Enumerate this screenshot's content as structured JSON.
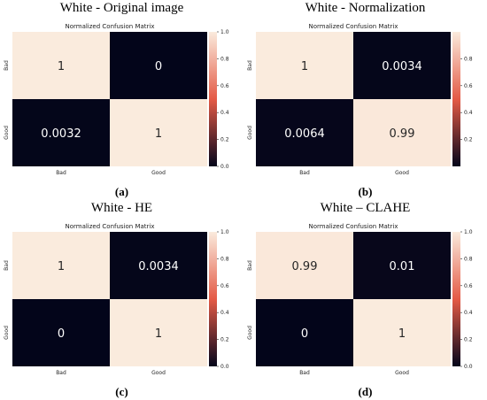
{
  "panels": [
    {
      "title": "White - Original image",
      "caption": "(a)"
    },
    {
      "title": "White - Normalization",
      "caption": "(b)"
    },
    {
      "title": "White - HE",
      "caption": "(c)"
    },
    {
      "title": "White – CLAHE",
      "caption": "(d)"
    }
  ],
  "colors": {
    "high": "#faebdd",
    "low": "#03051a"
  },
  "chart_data": [
    {
      "type": "heatmap",
      "title": "Normalized Confusion Matrix",
      "x_categories": [
        "Bad",
        "Good"
      ],
      "y_categories": [
        "Bad",
        "Good"
      ],
      "values": [
        [
          1,
          0
        ],
        [
          0.0032,
          1
        ]
      ],
      "labels": [
        [
          "1",
          "0"
        ],
        [
          "0.0032",
          "1"
        ]
      ],
      "colorbar": {
        "min": 0.0,
        "max": 1.0,
        "ticks": [
          "0.0",
          "0.2",
          "0.4",
          "0.6",
          "0.8",
          "1.0"
        ]
      }
    },
    {
      "type": "heatmap",
      "title": "Normalized Confusion Matrix",
      "x_categories": [
        "Bad",
        "Good"
      ],
      "y_categories": [
        "Bad",
        "Good"
      ],
      "values": [
        [
          1,
          0.0034
        ],
        [
          0.0064,
          0.99
        ]
      ],
      "labels": [
        [
          "1",
          "0.0034"
        ],
        [
          "0.0064",
          "0.99"
        ]
      ],
      "colorbar": {
        "min": 0.0,
        "max": 1.0,
        "ticks": [
          "0.2",
          "0.4",
          "0.6",
          "0.8"
        ]
      }
    },
    {
      "type": "heatmap",
      "title": "Normalized Confusion Matrix",
      "x_categories": [
        "Bad",
        "Good"
      ],
      "y_categories": [
        "Bad",
        "Good"
      ],
      "values": [
        [
          1,
          0.0034
        ],
        [
          0,
          1
        ]
      ],
      "labels": [
        [
          "1",
          "0.0034"
        ],
        [
          "0",
          "1"
        ]
      ],
      "colorbar": {
        "min": 0.0,
        "max": 1.0,
        "ticks": [
          "0.0",
          "0.2",
          "0.4",
          "0.6",
          "0.8",
          "1.0"
        ]
      }
    },
    {
      "type": "heatmap",
      "title": "Normalized Confusion Matrix",
      "x_categories": [
        "Bad",
        "Good"
      ],
      "y_categories": [
        "Bad",
        "Good"
      ],
      "values": [
        [
          0.99,
          0.01
        ],
        [
          0,
          1
        ]
      ],
      "labels": [
        [
          "0.99",
          "0.01"
        ],
        [
          "0",
          "1"
        ]
      ],
      "colorbar": {
        "min": 0.0,
        "max": 1.0,
        "ticks": [
          "0.0",
          "0.2",
          "0.4",
          "0.6",
          "0.8",
          "1.0"
        ]
      }
    }
  ]
}
